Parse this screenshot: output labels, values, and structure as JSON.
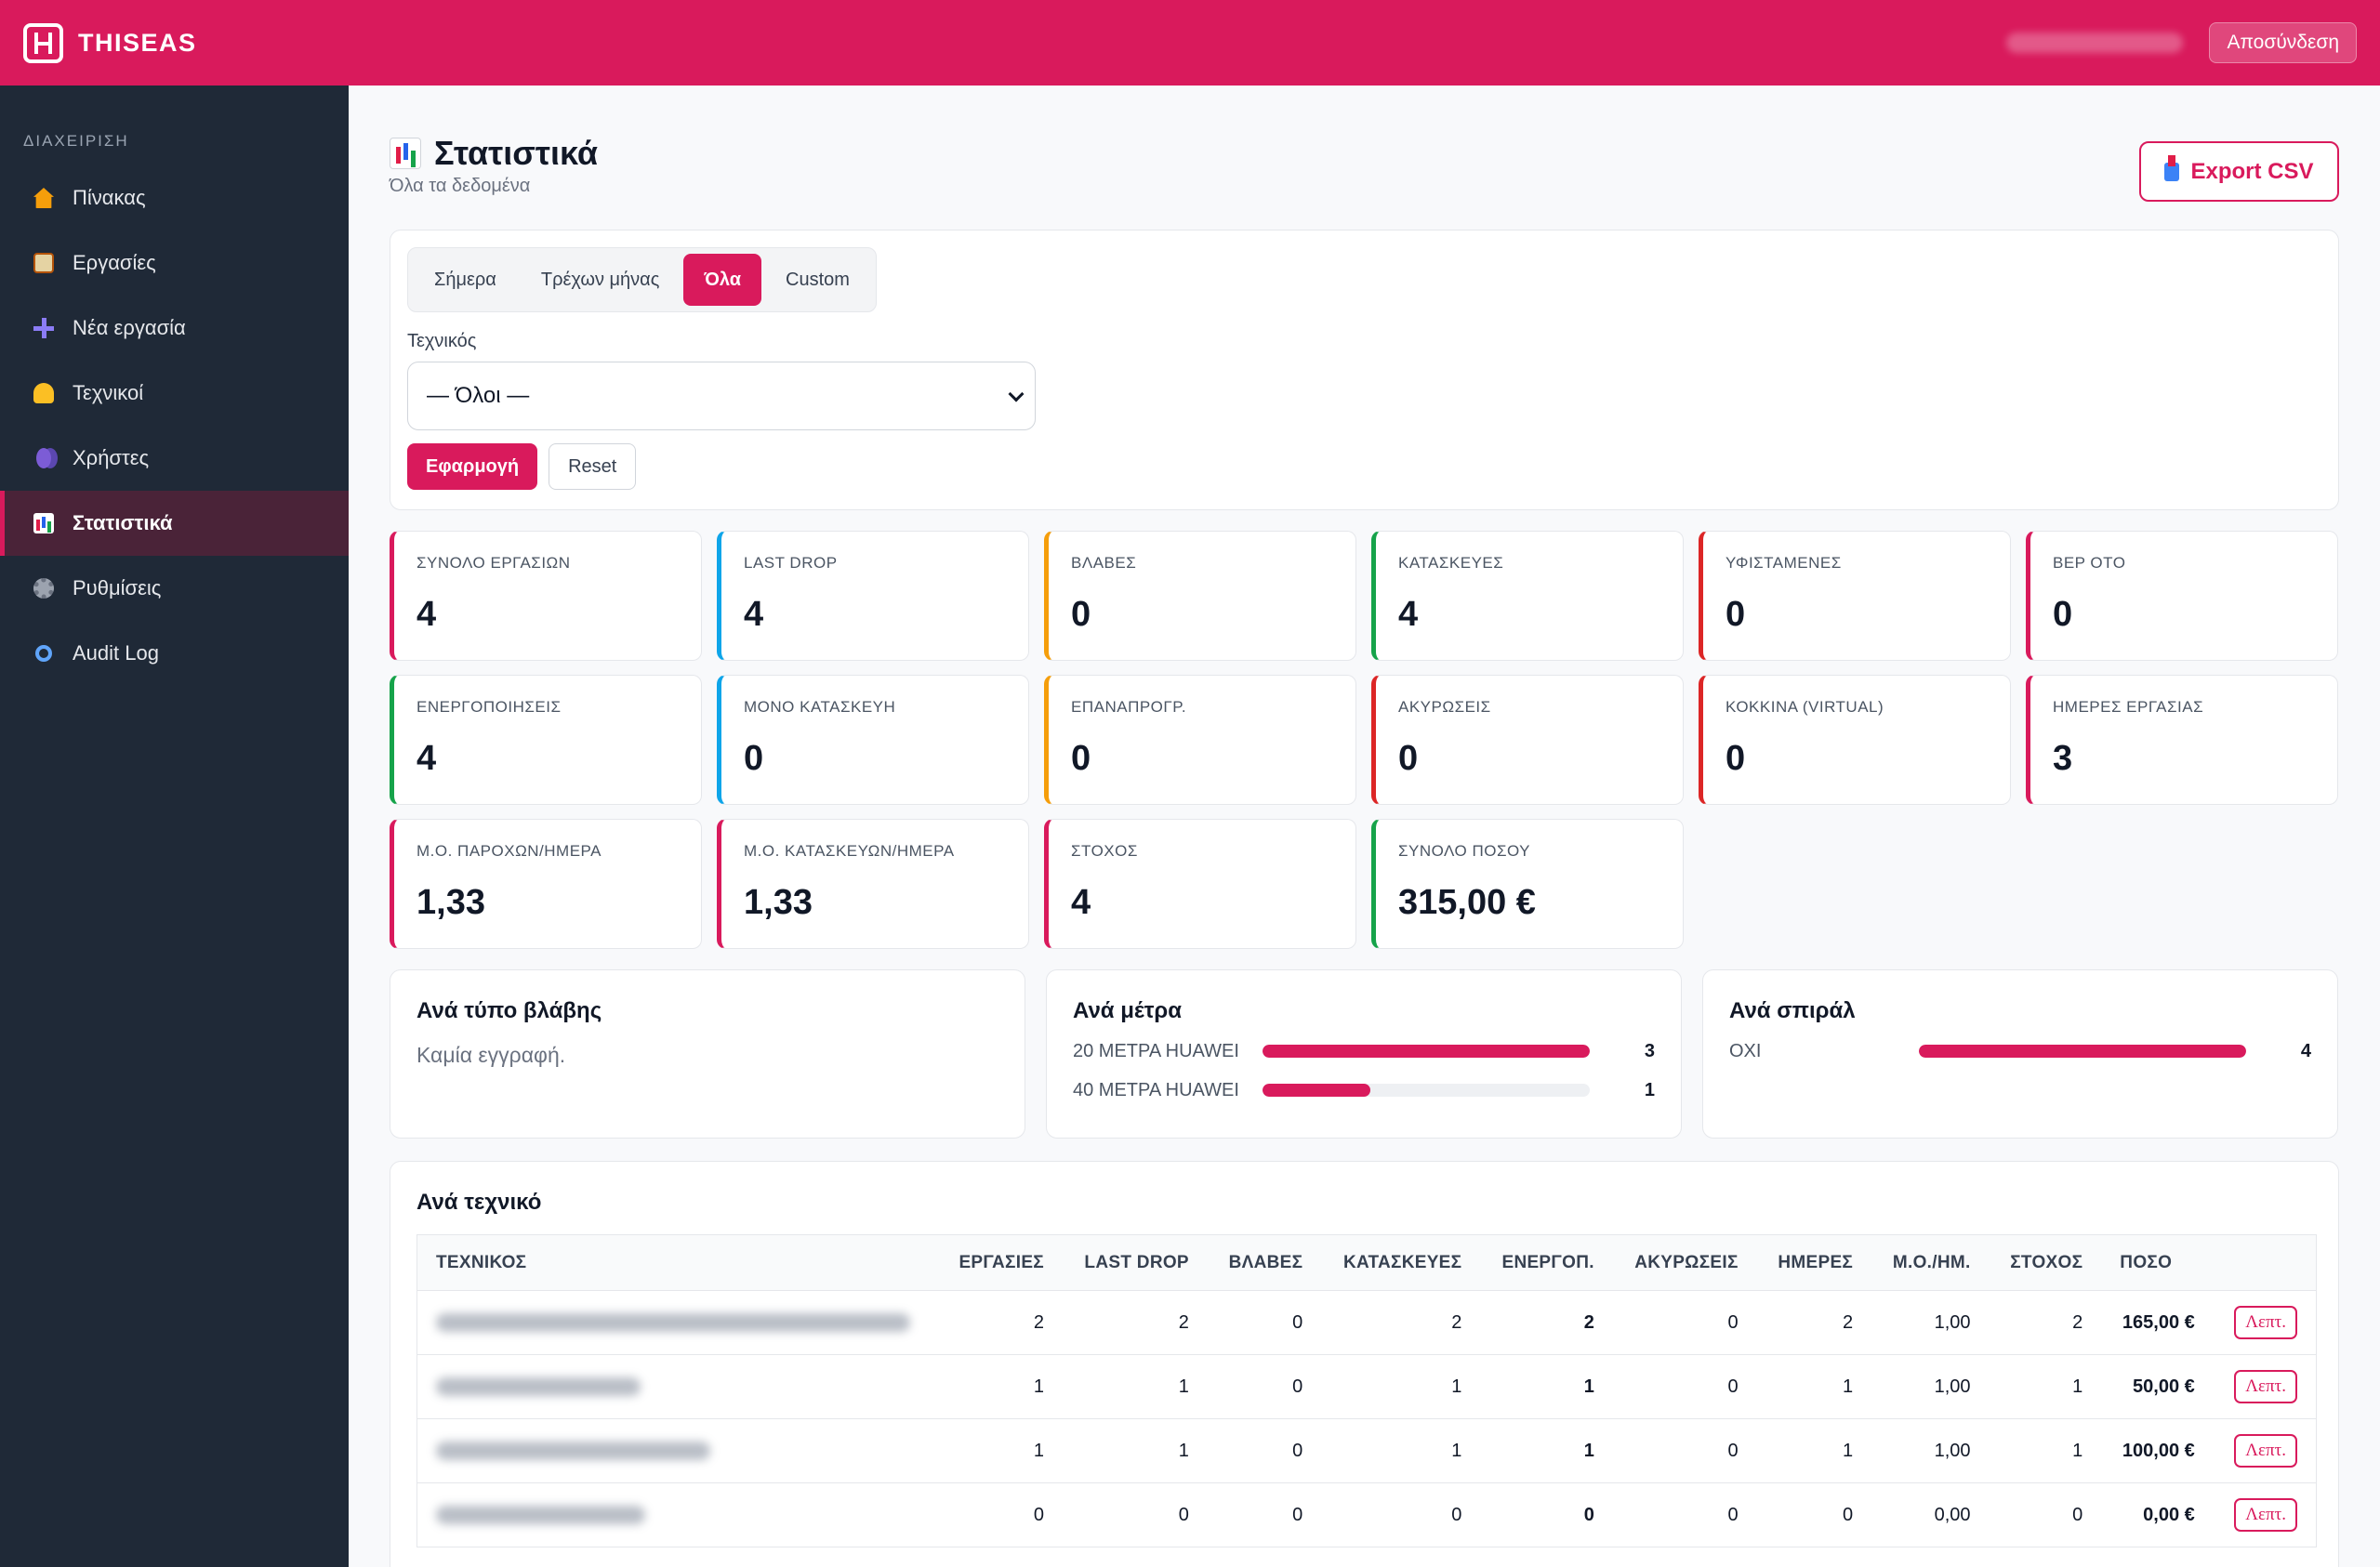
{
  "app": {
    "brand": "THISEAS",
    "logout_label": "Αποσύνδεση"
  },
  "sidebar": {
    "section_label": "ΔΙΑΧΕΙΡΙΣΗ",
    "items": [
      {
        "label": "Πίνακας",
        "icon": "house-icon"
      },
      {
        "label": "Εργασίες",
        "icon": "clipboard-icon"
      },
      {
        "label": "Νέα εργασία",
        "icon": "plus-icon"
      },
      {
        "label": "Τεχνικοί",
        "icon": "technician-icon"
      },
      {
        "label": "Χρήστες",
        "icon": "users-icon"
      },
      {
        "label": "Στατιστικά",
        "icon": "bar-chart-icon",
        "active": true
      },
      {
        "label": "Ρυθμίσεις",
        "icon": "gear-icon"
      },
      {
        "label": "Audit Log",
        "icon": "magnifier-icon"
      }
    ]
  },
  "page": {
    "title": "Στατιστικά",
    "subtitle": "Όλα τα δεδομένα",
    "export_label": "Export CSV"
  },
  "filters": {
    "tabs": [
      "Σήμερα",
      "Τρέχων μήνας",
      "Όλα",
      "Custom"
    ],
    "active_tab": "Όλα",
    "technician_label": "Τεχνικός",
    "technician_value": "— Όλοι —",
    "apply_label": "Εφαρμογή",
    "reset_label": "Reset"
  },
  "stats": [
    {
      "label": "ΣΥΝΟΛΟ ΕΡΓΑΣΙΩΝ",
      "value": "4",
      "accent": "#d91a5c"
    },
    {
      "label": "LAST DROP",
      "value": "4",
      "accent": "#0ea5e9"
    },
    {
      "label": "ΒΛΑΒΕΣ",
      "value": "0",
      "accent": "#f59e0b"
    },
    {
      "label": "ΚΑΤΑΣΚΕΥΕΣ",
      "value": "4",
      "accent": "#16a34a"
    },
    {
      "label": "ΥΦΙΣΤΑΜΕΝΕΣ",
      "value": "0",
      "accent": "#dc2626"
    },
    {
      "label": "ΒΕΡ ΟΤΟ",
      "value": "0",
      "accent": "#d91a5c"
    },
    {
      "label": "ΕΝΕΡΓΟΠΟΙΗΣΕΙΣ",
      "value": "4",
      "accent": "#16a34a"
    },
    {
      "label": "ΜΟΝΟ ΚΑΤΑΣΚΕΥΗ",
      "value": "0",
      "accent": "#0ea5e9"
    },
    {
      "label": "ΕΠΑΝΑΠΡΟΓΡ.",
      "value": "0",
      "accent": "#f59e0b"
    },
    {
      "label": "ΑΚΥΡΩΣΕΙΣ",
      "value": "0",
      "accent": "#dc2626"
    },
    {
      "label": "ΚΟΚΚΙΝΑ (VIRTUAL)",
      "value": "0",
      "accent": "#dc2626"
    },
    {
      "label": "ΗΜΕΡΕΣ ΕΡΓΑΣΙΑΣ",
      "value": "3",
      "accent": "#d91a5c"
    },
    {
      "label": "Μ.Ο. ΠΑΡΟΧΩΝ/ΗΜΕΡΑ",
      "value": "1,33",
      "accent": "#d91a5c"
    },
    {
      "label": "Μ.Ο. ΚΑΤΑΣΚΕΥΩΝ/ΗΜΕΡΑ",
      "value": "1,33",
      "accent": "#d91a5c"
    },
    {
      "label": "ΣΤΟΧΟΣ",
      "value": "4",
      "accent": "#d91a5c"
    },
    {
      "label": "ΣΥΝΟΛΟ ΠΟΣΟΥ",
      "value": "315,00 €",
      "accent": "#16a34a"
    }
  ],
  "breakdowns": {
    "fault_type": {
      "title": "Ανά τύπο βλάβης",
      "empty": "Καμία εγγραφή."
    },
    "meters": {
      "title": "Ανά μέτρα",
      "rows": [
        {
          "label": "20 ΜΕΤΡΑ HUAWEI",
          "count": "3",
          "fraction": 1.0
        },
        {
          "label": "40 ΜΕΤΡΑ HUAWEI",
          "count": "1",
          "fraction": 0.33
        }
      ]
    },
    "spiral": {
      "title": "Ανά σπιράλ",
      "rows": [
        {
          "label": "ΟΧΙ",
          "count": "4",
          "fraction": 1.0
        }
      ]
    }
  },
  "technicians": {
    "title": "Ανά τεχνικό",
    "columns": [
      "ΤΕΧΝΙΚΟΣ",
      "ΕΡΓΑΣΙΕΣ",
      "LAST DROP",
      "ΒΛΑΒΕΣ",
      "ΚΑΤΑΣΚΕΥΕΣ",
      "ΕΝΕΡΓΟΠ.",
      "ΑΚΥΡΩΣΕΙΣ",
      "ΗΜΕΡΕΣ",
      "Μ.Ο./ΗΜ.",
      "ΣΤΟΧΟΣ",
      "ΠΟΣΟ"
    ],
    "details_label": "Λεπτ.",
    "rows": [
      {
        "tasks": "2",
        "last_drop": "2",
        "faults": "0",
        "constructions": "2",
        "activations": "2",
        "cancellations": "0",
        "days": "2",
        "avg": "1,00",
        "target": "2",
        "amount": "165,00 €"
      },
      {
        "tasks": "1",
        "last_drop": "1",
        "faults": "0",
        "constructions": "1",
        "activations": "1",
        "cancellations": "0",
        "days": "1",
        "avg": "1,00",
        "target": "1",
        "amount": "50,00 €"
      },
      {
        "tasks": "1",
        "last_drop": "1",
        "faults": "0",
        "constructions": "1",
        "activations": "1",
        "cancellations": "0",
        "days": "1",
        "avg": "1,00",
        "target": "1",
        "amount": "100,00 €"
      },
      {
        "tasks": "0",
        "last_drop": "0",
        "faults": "0",
        "constructions": "0",
        "activations": "0",
        "cancellations": "0",
        "days": "0",
        "avg": "0,00",
        "target": "0",
        "amount": "0,00 €"
      }
    ]
  }
}
